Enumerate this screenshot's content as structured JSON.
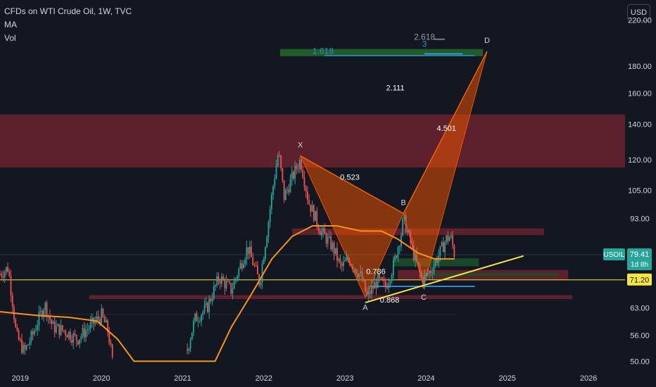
{
  "header": {
    "symbol_line": "CFDs on WTI Crude Oil, 1W, TVC",
    "indicator_ma": "MA",
    "indicator_vol": "Vol"
  },
  "currency_button": "USD",
  "colors": {
    "background": "#131722",
    "candle_up": "#26a69a",
    "candle_down": "#ef5350",
    "ma_line": "#f7931a",
    "pattern_fill": "#e65100",
    "resistance_zone": "#6b2330",
    "support_zone": "#1b4d2b",
    "trendline": "#f5e642",
    "price_line": "#f5e642",
    "fib_blue": "#2c8dca",
    "fib_green": "#1f5c2a"
  },
  "chart_data": {
    "type": "candlestick",
    "title": "CFDs on WTI Crude Oil, 1W, TVC",
    "yaxis_scale": "log",
    "ylim": [
      49,
      240
    ],
    "xlim": [
      2018.75,
      2026.45
    ],
    "x_ticks": [
      "2019",
      "2020",
      "2021",
      "2022",
      "2023",
      "2024",
      "2025",
      "2026"
    ],
    "x_tick_values": [
      2019,
      2020,
      2021,
      2022,
      2023,
      2024,
      2025,
      2026
    ],
    "y_ticks": [
      "220.00",
      "180.00",
      "160.00",
      "140.00",
      "120.00",
      "105.00",
      "93.00",
      "63.00",
      "56.00",
      "50.00"
    ],
    "y_tick_values": [
      220,
      180,
      160,
      140,
      120,
      105,
      93,
      63,
      56,
      50
    ],
    "price_path": [
      [
        2018.75,
        73
      ],
      [
        2018.85,
        75
      ],
      [
        2018.95,
        56
      ],
      [
        2019.05,
        52
      ],
      [
        2019.15,
        56
      ],
      [
        2019.3,
        64
      ],
      [
        2019.4,
        58
      ],
      [
        2019.55,
        57
      ],
      [
        2019.7,
        55
      ],
      [
        2019.85,
        58
      ],
      [
        2020.0,
        61
      ],
      [
        2020.08,
        57
      ],
      [
        2020.15,
        48
      ],
      [
        2021.05,
        52
      ],
      [
        2021.15,
        60
      ],
      [
        2021.3,
        63
      ],
      [
        2021.45,
        72
      ],
      [
        2021.6,
        68
      ],
      [
        2021.8,
        82
      ],
      [
        2021.95,
        70
      ],
      [
        2022.05,
        90
      ],
      [
        2022.18,
        124
      ],
      [
        2022.25,
        102
      ],
      [
        2022.45,
        120
      ],
      [
        2022.55,
        100
      ],
      [
        2022.7,
        88
      ],
      [
        2022.85,
        82
      ],
      [
        2022.95,
        75
      ],
      [
        2023.05,
        78
      ],
      [
        2023.2,
        72
      ],
      [
        2023.27,
        66
      ],
      [
        2023.4,
        71
      ],
      [
        2023.5,
        69
      ],
      [
        2023.6,
        76
      ],
      [
        2023.7,
        88
      ],
      [
        2023.72,
        93
      ],
      [
        2023.85,
        79
      ],
      [
        2023.95,
        71
      ],
      [
        2024.05,
        74
      ],
      [
        2024.15,
        79
      ],
      [
        2024.25,
        85
      ],
      [
        2024.3,
        86
      ],
      [
        2024.35,
        79.41
      ]
    ],
    "ma_path": [
      [
        2018.75,
        62
      ],
      [
        2019.2,
        61
      ],
      [
        2019.6,
        60.5
      ],
      [
        2019.95,
        59.5
      ],
      [
        2020.2,
        55
      ],
      [
        2020.4,
        50
      ],
      [
        2021.4,
        50
      ],
      [
        2021.6,
        58
      ],
      [
        2021.85,
        67
      ],
      [
        2022.1,
        78
      ],
      [
        2022.35,
        86
      ],
      [
        2022.6,
        90
      ],
      [
        2022.9,
        90
      ],
      [
        2023.2,
        88
      ],
      [
        2023.45,
        88
      ],
      [
        2023.65,
        85
      ],
      [
        2023.9,
        80
      ],
      [
        2024.1,
        78
      ],
      [
        2024.35,
        78
      ]
    ],
    "harmonic_pattern": {
      "points": [
        {
          "label": "X",
          "x": 2022.45,
          "y": 122
        },
        {
          "label": "A",
          "x": 2023.25,
          "y": 66
        },
        {
          "label": "B",
          "x": 2023.72,
          "y": 95
        },
        {
          "label": "C",
          "x": 2023.97,
          "y": 69
        },
        {
          "label": "D",
          "x": 2024.75,
          "y": 192
        }
      ],
      "ratios": [
        {
          "text": "0.523",
          "x": 2023.06,
          "y": 110
        },
        {
          "text": "0.786",
          "x": 2023.38,
          "y": 73
        },
        {
          "text": "0.868",
          "x": 2023.55,
          "y": 64.5
        },
        {
          "text": "2.111",
          "x": 2023.62,
          "y": 162
        },
        {
          "text": "4.501",
          "x": 2024.25,
          "y": 136
        }
      ]
    },
    "zones": [
      {
        "kind": "resistance",
        "y_low": 116,
        "y_high": 146,
        "x_from": 2018.75,
        "x_to": 2026.45
      },
      {
        "kind": "resistance",
        "y_low": 86.5,
        "y_high": 89,
        "x_from": 2022.35,
        "x_to": 2025.45
      },
      {
        "kind": "resistance",
        "y_low": 71.2,
        "y_high": 74.3,
        "x_from": 2023.65,
        "x_to": 2025.75
      },
      {
        "kind": "resistance",
        "y_low": 65.5,
        "y_high": 66.6,
        "x_from": 2019.85,
        "x_to": 2025.8
      },
      {
        "kind": "support",
        "y_low": 75.5,
        "y_high": 78.2,
        "x_from": 2023.6,
        "x_to": 2024.65
      },
      {
        "kind": "support",
        "y_low": 72.4,
        "y_high": 73.3,
        "x_from": 2023.95,
        "x_to": 2025.63
      }
    ],
    "trendline": {
      "from": [
        2023.25,
        64.5
      ],
      "to": [
        2025.2,
        79
      ]
    },
    "horizontal_levels": [
      {
        "kind": "current_price_line",
        "y": 71.2
      },
      {
        "kind": "faint_line",
        "y": 79.41
      },
      {
        "kind": "dotted",
        "y": 61.3,
        "x_from": 2018.75,
        "x_to": 2024.35
      },
      {
        "kind": "blue_short",
        "y": 69.2,
        "x_from": 2023.3,
        "x_to": 2024.6
      }
    ],
    "fib_targets": [
      {
        "text": "1.618",
        "y": 193,
        "x": 2022.73
      },
      {
        "text": "2.618",
        "y": 205,
        "x": 2023.98
      },
      {
        "text": "3",
        "y": 199,
        "x": 2023.98
      }
    ],
    "fib_band": {
      "y_low": 188,
      "y_high": 194,
      "x_from": 2022.2,
      "x_to": 2024.7
    },
    "price_labels": [
      {
        "text": "USOIL",
        "kind": "symbol"
      },
      {
        "text": "79.41",
        "y": 79.41,
        "kind": "last_price"
      },
      {
        "text": "1d 8h",
        "kind": "countdown"
      },
      {
        "text": "71.20",
        "y": 71.2,
        "kind": "level"
      }
    ]
  }
}
